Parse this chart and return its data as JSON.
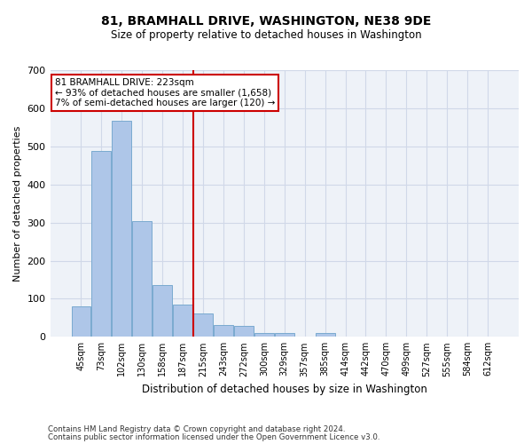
{
  "title": "81, BRAMHALL DRIVE, WASHINGTON, NE38 9DE",
  "subtitle": "Size of property relative to detached houses in Washington",
  "xlabel": "Distribution of detached houses by size in Washington",
  "ylabel": "Number of detached properties",
  "footer_line1": "Contains HM Land Registry data © Crown copyright and database right 2024.",
  "footer_line2": "Contains public sector information licensed under the Open Government Licence v3.0.",
  "bar_labels": [
    "45sqm",
    "73sqm",
    "102sqm",
    "130sqm",
    "158sqm",
    "187sqm",
    "215sqm",
    "243sqm",
    "272sqm",
    "300sqm",
    "329sqm",
    "357sqm",
    "385sqm",
    "414sqm",
    "442sqm",
    "470sqm",
    "499sqm",
    "527sqm",
    "555sqm",
    "584sqm",
    "612sqm"
  ],
  "bar_values": [
    80,
    487,
    567,
    304,
    137,
    85,
    62,
    32,
    28,
    10,
    10,
    0,
    10,
    0,
    0,
    0,
    0,
    0,
    0,
    0,
    0
  ],
  "bar_color": "#aec6e8",
  "bar_edge_color": "#7aaad0",
  "annotation_text": "81 BRAMHALL DRIVE: 223sqm\n← 93% of detached houses are smaller (1,658)\n7% of semi-detached houses are larger (120) →",
  "annotation_box_color": "#ffffff",
  "annotation_box_edge": "#cc0000",
  "vline_x": 5.5,
  "vline_color": "#cc0000",
  "grid_color": "#d0d8e8",
  "background_color": "#eef2f8",
  "ylim": [
    0,
    700
  ],
  "yticks": [
    0,
    100,
    200,
    300,
    400,
    500,
    600,
    700
  ]
}
